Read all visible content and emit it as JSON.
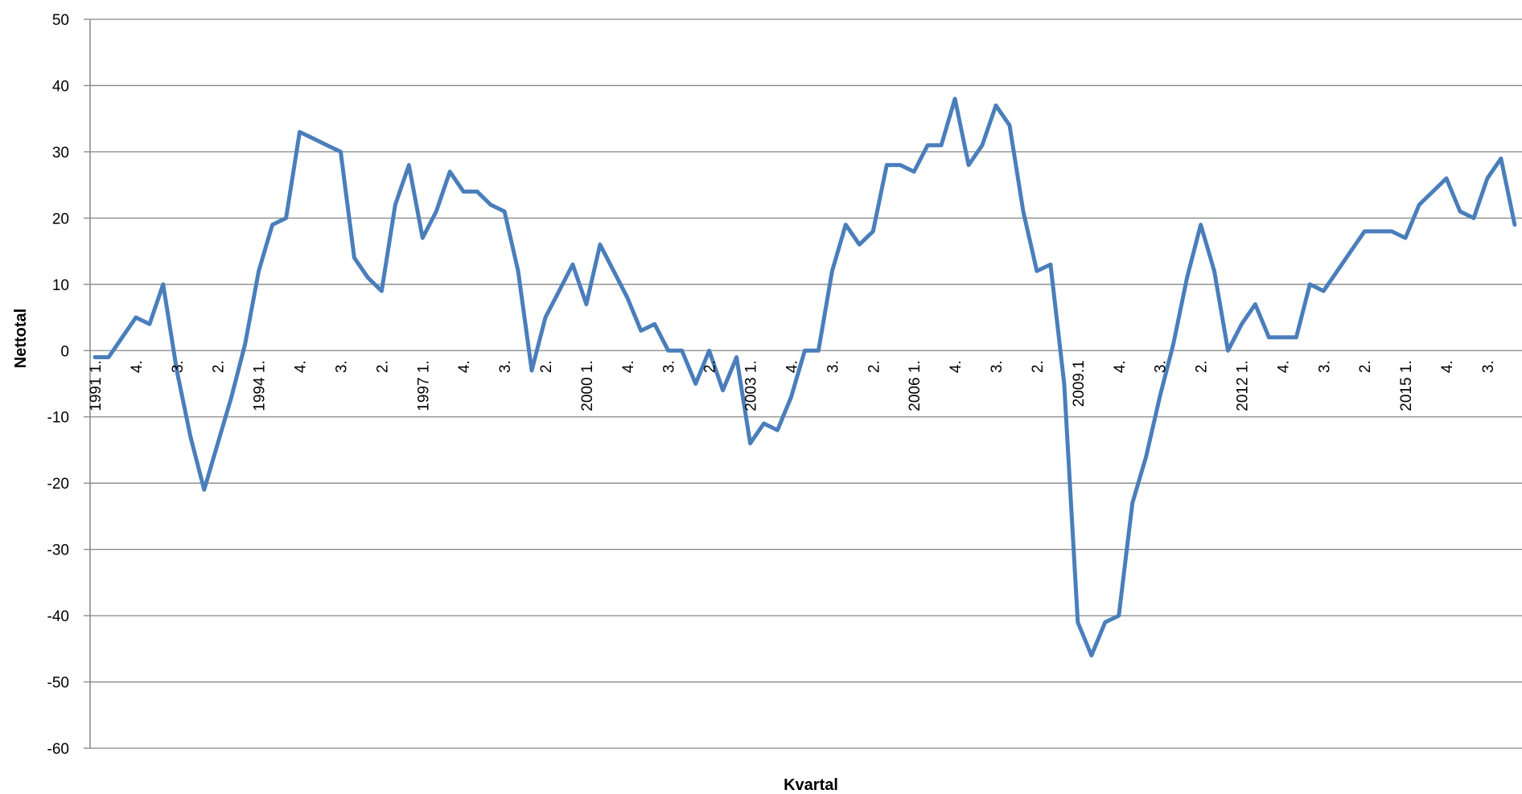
{
  "chart_data": {
    "type": "line",
    "title": "",
    "xlabel": "Kvartal",
    "ylabel": "Nettotal",
    "ylim": [
      -60,
      50
    ],
    "yticks": [
      50,
      40,
      30,
      20,
      10,
      0,
      -10,
      -20,
      -30,
      -40,
      -50,
      -60
    ],
    "grid": true,
    "legend": "none",
    "line_color": "#4A7EBB",
    "x_tick_labels": [
      {
        "index": 0,
        "label": "1991 1."
      },
      {
        "index": 3,
        "label": "4."
      },
      {
        "index": 6,
        "label": "3."
      },
      {
        "index": 9,
        "label": "2."
      },
      {
        "index": 12,
        "label": "1994 1."
      },
      {
        "index": 15,
        "label": "4."
      },
      {
        "index": 18,
        "label": "3."
      },
      {
        "index": 21,
        "label": "2."
      },
      {
        "index": 24,
        "label": "1997 1."
      },
      {
        "index": 27,
        "label": "4."
      },
      {
        "index": 30,
        "label": "3."
      },
      {
        "index": 33,
        "label": "2."
      },
      {
        "index": 36,
        "label": "2000 1."
      },
      {
        "index": 39,
        "label": "4."
      },
      {
        "index": 42,
        "label": "3."
      },
      {
        "index": 45,
        "label": "2."
      },
      {
        "index": 48,
        "label": "2003 1."
      },
      {
        "index": 51,
        "label": "4."
      },
      {
        "index": 54,
        "label": "3."
      },
      {
        "index": 57,
        "label": "2."
      },
      {
        "index": 60,
        "label": "2006 1."
      },
      {
        "index": 63,
        "label": "4."
      },
      {
        "index": 66,
        "label": "3."
      },
      {
        "index": 69,
        "label": "2."
      },
      {
        "index": 72,
        "label": "2009.1"
      },
      {
        "index": 75,
        "label": "4."
      },
      {
        "index": 78,
        "label": "3."
      },
      {
        "index": 81,
        "label": "2."
      },
      {
        "index": 84,
        "label": "2012 1."
      },
      {
        "index": 87,
        "label": "4."
      },
      {
        "index": 90,
        "label": "3."
      },
      {
        "index": 93,
        "label": "2."
      },
      {
        "index": 96,
        "label": "2015 1."
      },
      {
        "index": 99,
        "label": "4."
      },
      {
        "index": 102,
        "label": "3."
      }
    ],
    "series": [
      {
        "values": [
          -1,
          -1,
          2,
          5,
          4,
          10,
          -3,
          -13,
          -21,
          -14,
          -7,
          1,
          12,
          19,
          20,
          33,
          32,
          31,
          30,
          14,
          11,
          9,
          22,
          28,
          17,
          21,
          27,
          24,
          24,
          22,
          21,
          12,
          -3,
          5,
          9,
          13,
          7,
          16,
          12,
          8,
          3,
          4,
          0,
          0,
          -5,
          0,
          -6,
          -1,
          -14,
          -11,
          -12,
          -7,
          0,
          0,
          12,
          19,
          16,
          18,
          28,
          28,
          27,
          31,
          31,
          38,
          28,
          31,
          37,
          34,
          21,
          12,
          13,
          -5,
          -41,
          -46,
          -41,
          -40,
          -23,
          -16,
          -7,
          1,
          11,
          19,
          12,
          0,
          4,
          7,
          2,
          2,
          2,
          10,
          9,
          12,
          15,
          18,
          18,
          18,
          17,
          22,
          24,
          26,
          21,
          20,
          26,
          29,
          19
        ]
      }
    ]
  }
}
